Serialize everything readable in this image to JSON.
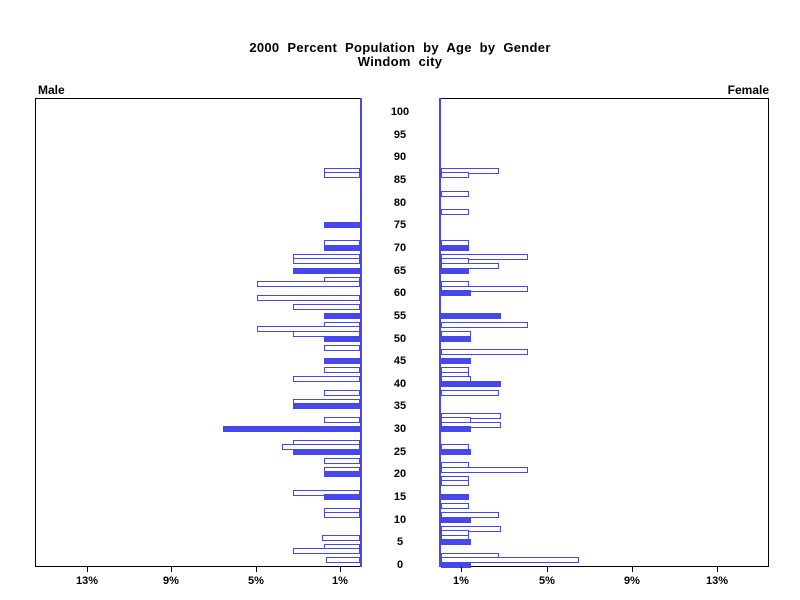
{
  "title": {
    "line1": "2000 Percent Population by Age by Gender",
    "line2": "Windom city"
  },
  "panel_labels": {
    "male": "Male",
    "female": "Female"
  },
  "colors": {
    "bar_blue": "#4747ec",
    "axis_black": "#000000",
    "hollow_fill": "#ffffff"
  },
  "chart_data": {
    "type": "bar",
    "variant": "population-pyramid",
    "title": "2000 Percent Population by Age by Gender",
    "subtitle": "Windom city",
    "unit": "percent of population",
    "age_axis": {
      "min": 0,
      "max": 100,
      "step": 5,
      "tick_labels": [
        "0",
        "5",
        "10",
        "15",
        "20",
        "25",
        "30",
        "35",
        "40",
        "45",
        "50",
        "55",
        "60",
        "65",
        "70",
        "75",
        "80",
        "85",
        "90",
        "95",
        "100"
      ]
    },
    "male_pct_axis": {
      "min": 0,
      "max": 15.5,
      "tick_values": [
        13,
        9,
        5,
        1
      ],
      "tick_labels": [
        "13%",
        "9%",
        "5%",
        "1%"
      ],
      "direction": "right-to-left"
    },
    "female_pct_axis": {
      "min": 0,
      "max": 15.5,
      "tick_values": [
        1,
        5,
        9,
        13
      ],
      "tick_labels": [
        "1%",
        "5%",
        "9%",
        "13%"
      ],
      "direction": "left-to-right"
    },
    "bar_note": "filled=1 means solid blue bar (ages divisible by 5); filled=0 means hollow bar; ages absent have zero value",
    "columns": [
      "age",
      "pct",
      "filled"
    ],
    "series": [
      {
        "name": "Male",
        "bars": [
          [
            87,
            1.7,
            0
          ],
          [
            86,
            1.7,
            0
          ],
          [
            75,
            1.7,
            1
          ],
          [
            71,
            1.7,
            0
          ],
          [
            70,
            1.7,
            1
          ],
          [
            68,
            3.2,
            0
          ],
          [
            67,
            3.2,
            0
          ],
          [
            65,
            3.2,
            1
          ],
          [
            63,
            1.7,
            0
          ],
          [
            62,
            4.9,
            0
          ],
          [
            59,
            4.9,
            0
          ],
          [
            57,
            3.2,
            0
          ],
          [
            55,
            1.7,
            1
          ],
          [
            53,
            1.7,
            0
          ],
          [
            52,
            4.9,
            0
          ],
          [
            51,
            3.2,
            0
          ],
          [
            50,
            1.7,
            1
          ],
          [
            48,
            1.7,
            0
          ],
          [
            45,
            1.7,
            1
          ],
          [
            43,
            1.7,
            0
          ],
          [
            41,
            3.2,
            0
          ],
          [
            38,
            1.7,
            0
          ],
          [
            36,
            3.2,
            0
          ],
          [
            35,
            3.2,
            1
          ],
          [
            32,
            1.7,
            0
          ],
          [
            30,
            6.5,
            1
          ],
          [
            27,
            3.2,
            0
          ],
          [
            26,
            3.7,
            0
          ],
          [
            25,
            3.2,
            1
          ],
          [
            23,
            1.7,
            0
          ],
          [
            21,
            1.7,
            0
          ],
          [
            20,
            1.7,
            1
          ],
          [
            16,
            3.2,
            0
          ],
          [
            15,
            1.7,
            1
          ],
          [
            12,
            1.7,
            0
          ],
          [
            11,
            1.7,
            0
          ],
          [
            6,
            1.8,
            0
          ],
          [
            4,
            1.7,
            0
          ],
          [
            3,
            3.2,
            0
          ],
          [
            1,
            1.6,
            0
          ]
        ]
      },
      {
        "name": "Female",
        "bars": [
          [
            87,
            2.7,
            0
          ],
          [
            86,
            1.3,
            0
          ],
          [
            82,
            1.3,
            0
          ],
          [
            78,
            1.3,
            0
          ],
          [
            71,
            1.3,
            0
          ],
          [
            70,
            1.3,
            1
          ],
          [
            68,
            4.1,
            0
          ],
          [
            67,
            1.3,
            0
          ],
          [
            66,
            2.7,
            0
          ],
          [
            65,
            1.3,
            1
          ],
          [
            62,
            1.3,
            0
          ],
          [
            61,
            4.1,
            0
          ],
          [
            60,
            1.4,
            1
          ],
          [
            55,
            2.8,
            1
          ],
          [
            53,
            4.1,
            0
          ],
          [
            51,
            1.4,
            0
          ],
          [
            50,
            1.4,
            1
          ],
          [
            47,
            4.1,
            0
          ],
          [
            45,
            1.4,
            1
          ],
          [
            43,
            1.3,
            0
          ],
          [
            42,
            1.3,
            0
          ],
          [
            41,
            1.4,
            0
          ],
          [
            40,
            2.8,
            1
          ],
          [
            38,
            2.7,
            0
          ],
          [
            33,
            2.8,
            0
          ],
          [
            32,
            1.4,
            0
          ],
          [
            31,
            2.8,
            0
          ],
          [
            30,
            1.4,
            1
          ],
          [
            26,
            1.3,
            0
          ],
          [
            25,
            1.4,
            1
          ],
          [
            22,
            1.3,
            0
          ],
          [
            21,
            4.1,
            0
          ],
          [
            19,
            1.3,
            0
          ],
          [
            18,
            1.3,
            0
          ],
          [
            15,
            1.3,
            1
          ],
          [
            13,
            1.3,
            0
          ],
          [
            11,
            2.7,
            0
          ],
          [
            10,
            1.4,
            1
          ],
          [
            8,
            2.8,
            0
          ],
          [
            7,
            1.3,
            0
          ],
          [
            6,
            1.3,
            0
          ],
          [
            5,
            1.4,
            1
          ],
          [
            2,
            2.7,
            0
          ],
          [
            1,
            6.5,
            0
          ],
          [
            0,
            1.4,
            1
          ]
        ]
      }
    ]
  }
}
